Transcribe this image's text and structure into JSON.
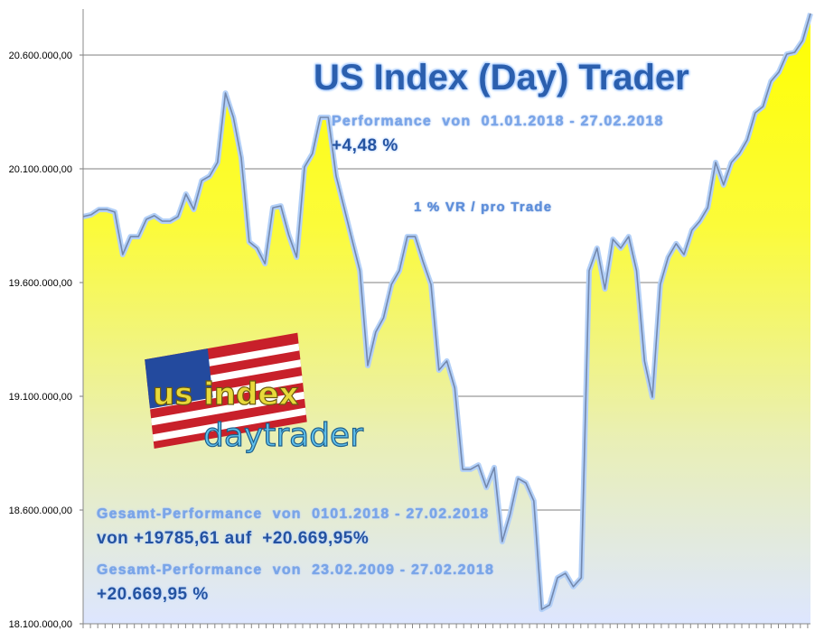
{
  "chart_data": {
    "type": "area",
    "title": "US Index (Day) Trader",
    "xlabel": "",
    "ylabel": "",
    "ylim": [
      18100000,
      20800000
    ],
    "yticks": [
      18100000,
      18600000,
      19100000,
      19600000,
      20100000,
      20600000
    ],
    "ytick_labels": [
      "18.100.000,00",
      "18.600.000,00",
      "19.100.000,00",
      "19.600.000,00",
      "20.100.000,00",
      "20.600.000,00"
    ],
    "grid": true,
    "colors": {
      "fill_top": "#ffff00",
      "fill_bottom": "#dfe8ff",
      "line": "#7d93b8",
      "line_glow": "#a8c8f5",
      "grid": "#555555"
    },
    "values": [
      19890000,
      19898000,
      19921000,
      19921000,
      19910000,
      19723000,
      19802000,
      19802000,
      19878000,
      19894000,
      19870000,
      19870000,
      19890000,
      19989000,
      19921000,
      20048000,
      20068000,
      20128000,
      20433000,
      20326000,
      20148000,
      19779000,
      19751000,
      19683000,
      19929000,
      19937000,
      19810000,
      19711000,
      20108000,
      20167000,
      20326000,
      20326000,
      20068000,
      19929000,
      19790000,
      19652000,
      19235000,
      19382000,
      19445000,
      19592000,
      19652000,
      19802000,
      19802000,
      19691000,
      19592000,
      19215000,
      19255000,
      19136000,
      18779000,
      18779000,
      18798000,
      18699000,
      18787000,
      18461000,
      18580000,
      18739000,
      18719000,
      18640000,
      18163000,
      18183000,
      18302000,
      18322000,
      18263000,
      18302000,
      19652000,
      19751000,
      19572000,
      19790000,
      19751000,
      19802000,
      19652000,
      19255000,
      19096000,
      19592000,
      19711000,
      19771000,
      19723000,
      19830000,
      19870000,
      19929000,
      20128000,
      20029000,
      20128000,
      20167000,
      20227000,
      20346000,
      20374000,
      20485000,
      20525000,
      20604000,
      20612000,
      20663000,
      20783000
    ]
  },
  "overlay": {
    "title": "US Index (Day) Trader",
    "period_label": "Performance  von  01.01.2018 - 27.02.2018",
    "period_value": "+4,48 %",
    "risk_label": "1 % VR / pro Trade",
    "total_label_1": "Gesamt-Performance  von  0101.2018 - 27.02.2018",
    "total_value_1": "von +19785,61 auf  +20.669,95%",
    "total_label_2": "Gesamt-Performance  von  23.02.2009 - 27.02.2018",
    "total_value_2": "+20.669,95 %"
  },
  "logo": {
    "line1": "us index",
    "line2": "daytrader"
  }
}
